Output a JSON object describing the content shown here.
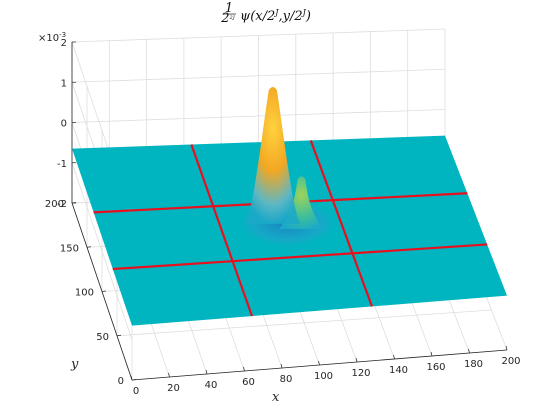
{
  "chart_data": {
    "type": "surface",
    "title": "½₂₂₇ ψ(x/2ʲ, y/2ʲ)",
    "title_parts": {
      "frac_num": "1",
      "frac_den": "2",
      "frac_den_exp": "2J",
      "expr": "ψ(x/2",
      "expr_sup": "J",
      "expr_mid": ",y/2",
      "expr_sup2": "J",
      "expr_end": ")"
    },
    "xlabel": "x",
    "ylabel": "y",
    "z_exponent": "×10",
    "z_exponent_power": "-3",
    "xlim": [
      0,
      200
    ],
    "ylim": [
      0,
      200
    ],
    "zlim": [
      -2,
      2
    ],
    "x_ticks": [
      "0",
      "20",
      "40",
      "60",
      "80",
      "100",
      "120",
      "140",
      "160",
      "180",
      "200"
    ],
    "y_ticks": [
      "0",
      "50",
      "100",
      "150",
      "200"
    ],
    "z_ticks": [
      "-2",
      "-1",
      "0",
      "1",
      "2"
    ],
    "surface_domain": {
      "x": [
        0,
        200
      ],
      "y": [
        0,
        200
      ]
    },
    "surface_color": "#00B5BF",
    "grid_lines": {
      "color": "#E8101E",
      "x_values": [
        64,
        128
      ],
      "y_values": [
        64,
        128
      ]
    },
    "peaks": [
      {
        "x": 92,
        "y": 104,
        "height": 1.75,
        "color": "#F6B81A"
      },
      {
        "x": 106,
        "y": 96,
        "height": 0.65,
        "color": "#6FC56B"
      }
    ],
    "grid": "on"
  }
}
